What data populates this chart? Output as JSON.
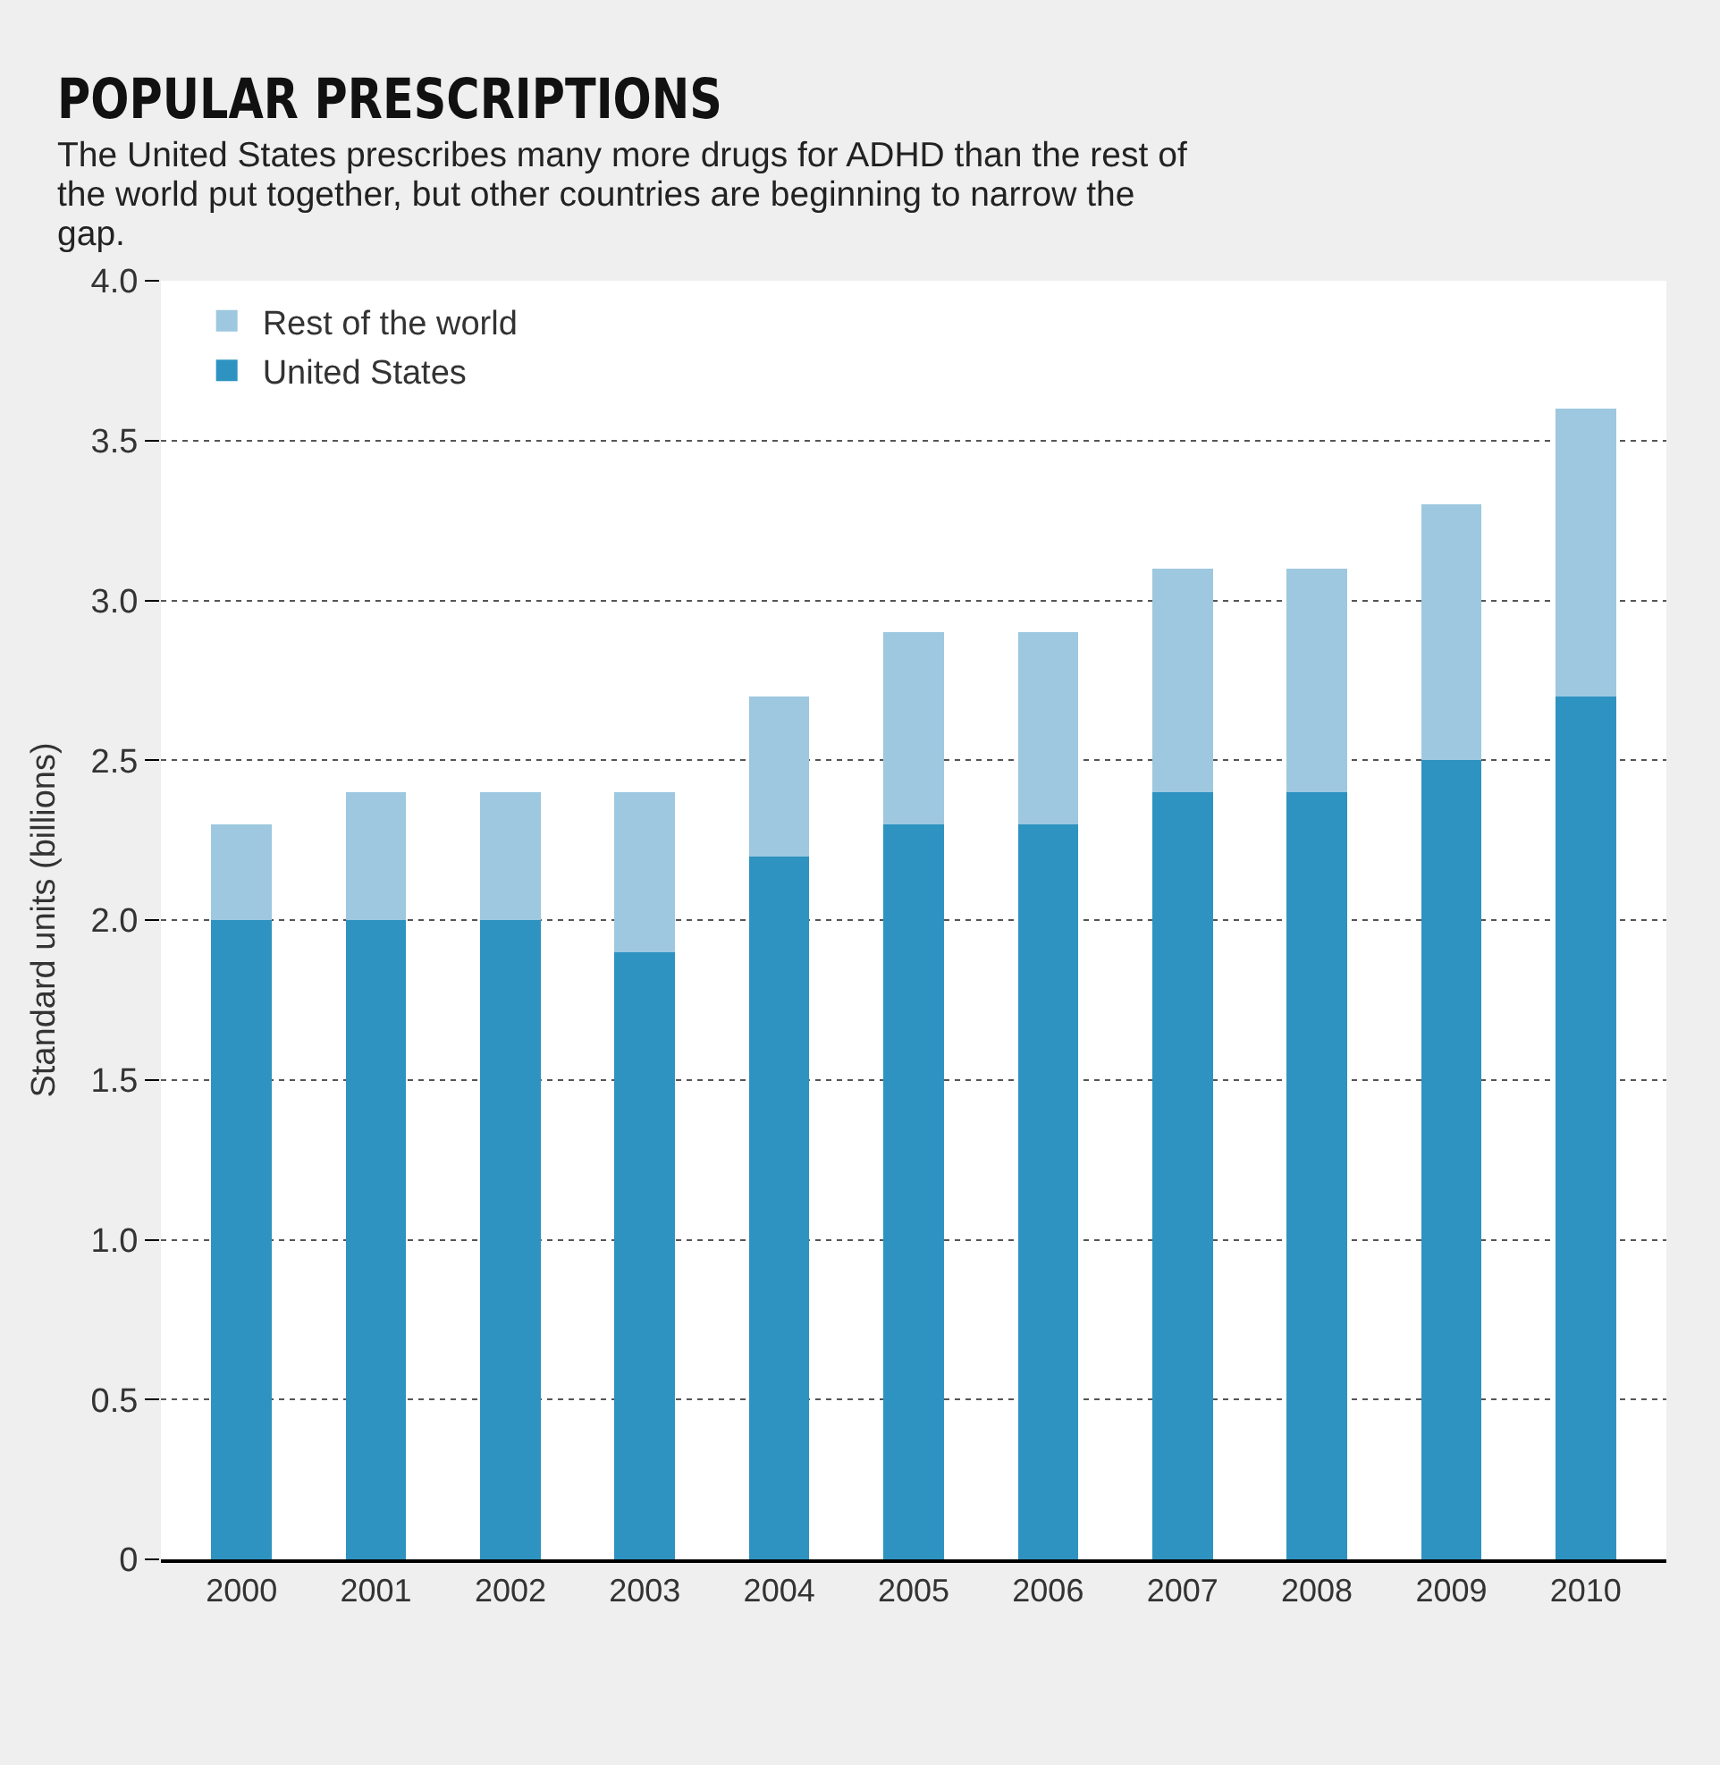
{
  "chart_data": {
    "type": "bar",
    "title": "POPULAR PRESCRIPTIONS",
    "subtitle": "The United States prescribes many more drugs for ADHD than the rest of the world put together, but other countries are beginning to narrow the gap.",
    "ylabel": "Standard units (billions)",
    "categories": [
      "2000",
      "2001",
      "2002",
      "2003",
      "2004",
      "2005",
      "2006",
      "2007",
      "2008",
      "2009",
      "2010"
    ],
    "stacked": true,
    "series": [
      {
        "name": "United States",
        "color": "#2e93c1",
        "values": [
          2.0,
          2.0,
          2.0,
          1.9,
          2.2,
          2.3,
          2.3,
          2.4,
          2.4,
          2.5,
          2.7
        ]
      },
      {
        "name": "Rest of the world",
        "color": "#9dc8df",
        "values": [
          0.3,
          0.4,
          0.4,
          0.5,
          0.5,
          0.6,
          0.6,
          0.7,
          0.7,
          0.8,
          0.9
        ]
      }
    ],
    "ylim": [
      0,
      4
    ],
    "yticks": [
      0,
      0.5,
      {
        "value": 1,
        "label": "1.0"
      },
      1.5,
      {
        "value": 2,
        "label": "2.0"
      },
      2.5,
      {
        "value": 3,
        "label": "3.0"
      },
      3.5,
      {
        "value": 4,
        "label": "4.0"
      }
    ],
    "grid": "y",
    "legend": "top left"
  }
}
